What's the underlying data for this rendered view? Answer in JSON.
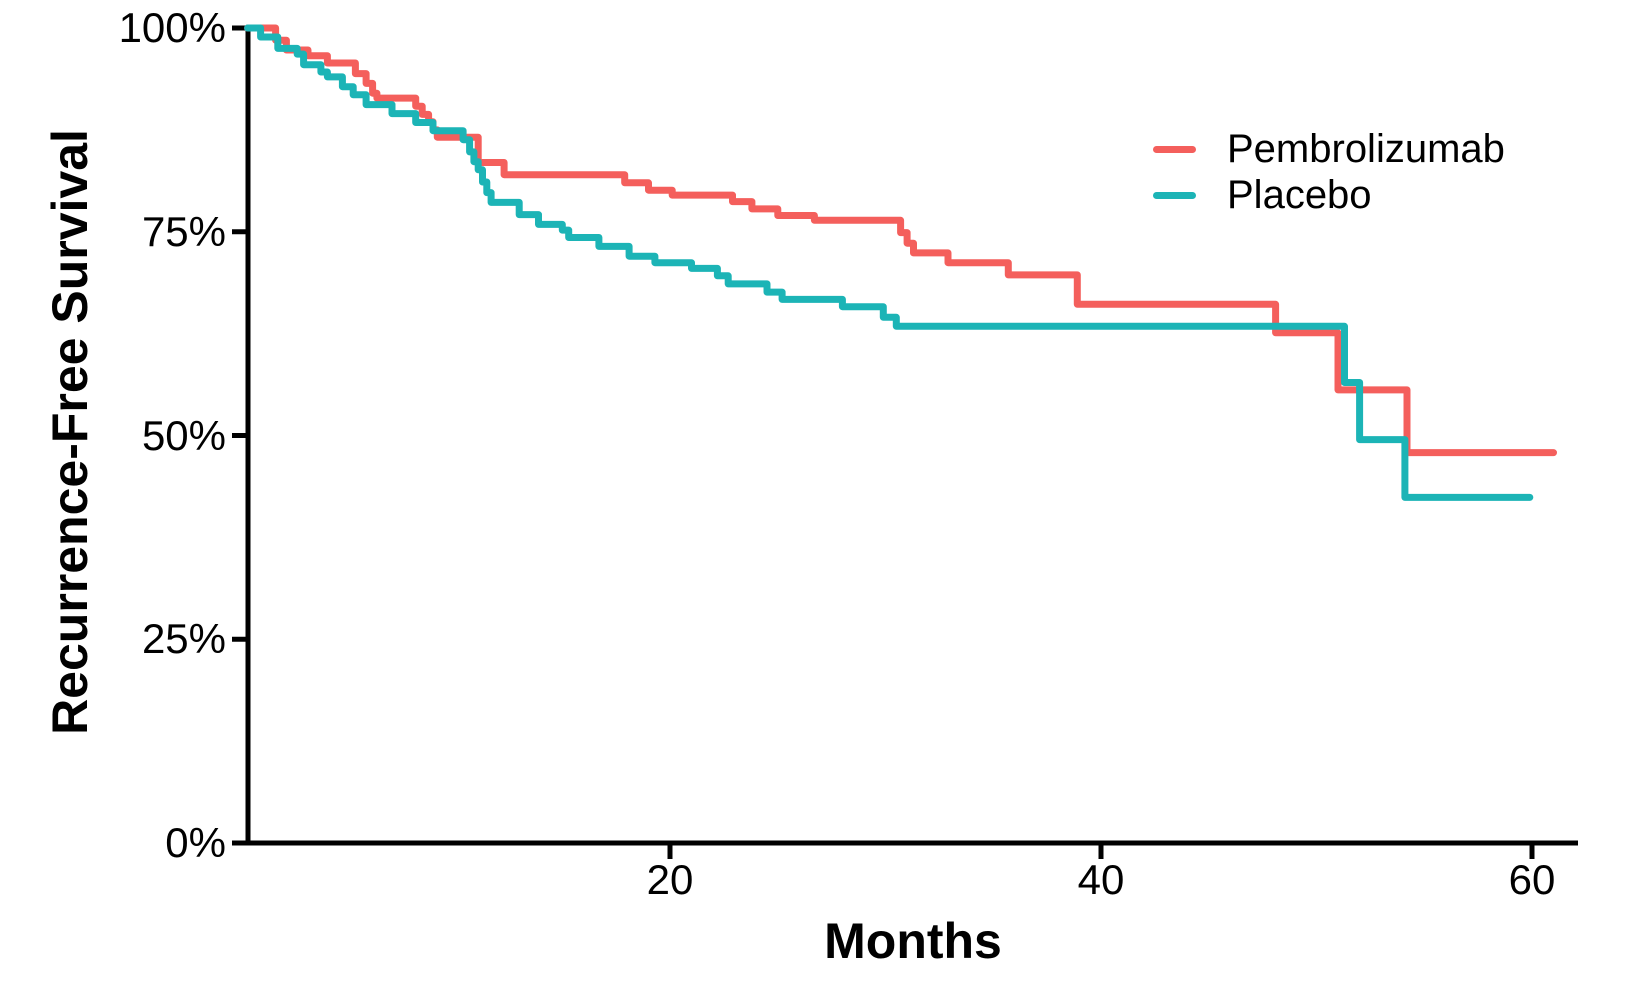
{
  "chart_data": {
    "type": "line",
    "subtype": "kaplan-meier-step",
    "title": "",
    "xlabel": "Months",
    "ylabel": "Recurrence-Free Survival",
    "xlim": [
      0,
      62
    ],
    "ylim": [
      0,
      100
    ],
    "grid": false,
    "legend_position": "top-right",
    "axis_color": "#000000",
    "xticks": [
      {
        "value": 20,
        "label": "20"
      },
      {
        "value": 40,
        "label": "40"
      },
      {
        "value": 60,
        "label": "60"
      }
    ],
    "yticks": [
      {
        "value": 0,
        "label": "0%"
      },
      {
        "value": 25,
        "label": "25%"
      },
      {
        "value": 50,
        "label": "50%"
      },
      {
        "value": 75,
        "label": "75%"
      },
      {
        "value": 100,
        "label": "100%"
      }
    ],
    "series": [
      {
        "name": "Pembrolizumab",
        "color": "#F45F5C",
        "end_month": 61.0,
        "steps": [
          [
            0.4,
            100
          ],
          [
            1.7,
            98.5
          ],
          [
            2.2,
            97.3
          ],
          [
            3.2,
            96.6
          ],
          [
            4.1,
            95.7
          ],
          [
            5.4,
            94.4
          ],
          [
            5.9,
            93.2
          ],
          [
            6.2,
            92.0
          ],
          [
            6.4,
            91.4
          ],
          [
            8.2,
            90.4
          ],
          [
            8.5,
            89.4
          ],
          [
            8.8,
            88.5
          ],
          [
            9.0,
            87.5
          ],
          [
            9.2,
            86.6
          ],
          [
            11.1,
            83.5
          ],
          [
            12.3,
            82.0
          ],
          [
            17.9,
            81.0
          ],
          [
            19.0,
            80.1
          ],
          [
            20.1,
            79.5
          ],
          [
            22.9,
            78.7
          ],
          [
            23.8,
            77.8
          ],
          [
            25.0,
            77.0
          ],
          [
            26.7,
            76.4
          ],
          [
            30.7,
            74.9
          ],
          [
            31.0,
            73.6
          ],
          [
            31.3,
            72.4
          ],
          [
            32.9,
            71.2
          ],
          [
            35.7,
            69.7
          ],
          [
            38.9,
            66.1
          ],
          [
            48.1,
            62.6
          ],
          [
            51.0,
            55.6
          ],
          [
            54.2,
            47.9
          ]
        ]
      },
      {
        "name": "Placebo",
        "color": "#1CB4B6",
        "end_month": 59.9,
        "steps": [
          [
            0.4,
            100
          ],
          [
            1.0,
            98.9
          ],
          [
            1.8,
            97.5
          ],
          [
            2.7,
            96.8
          ],
          [
            3.0,
            95.5
          ],
          [
            3.8,
            94.6
          ],
          [
            4.1,
            94.0
          ],
          [
            4.8,
            92.8
          ],
          [
            5.3,
            91.8
          ],
          [
            5.9,
            90.6
          ],
          [
            7.1,
            89.5
          ],
          [
            8.2,
            88.4
          ],
          [
            9.0,
            87.4
          ],
          [
            10.4,
            86.3
          ],
          [
            10.7,
            84.8
          ],
          [
            10.9,
            83.6
          ],
          [
            11.1,
            82.6
          ],
          [
            11.3,
            81.1
          ],
          [
            11.5,
            79.8
          ],
          [
            11.7,
            78.6
          ],
          [
            13.0,
            77.1
          ],
          [
            13.9,
            75.9
          ],
          [
            15.0,
            75.2
          ],
          [
            15.3,
            74.3
          ],
          [
            16.7,
            73.2
          ],
          [
            18.1,
            72.0
          ],
          [
            19.3,
            71.2
          ],
          [
            21.0,
            70.5
          ],
          [
            22.2,
            69.6
          ],
          [
            22.7,
            68.6
          ],
          [
            24.5,
            67.6
          ],
          [
            25.2,
            66.7
          ],
          [
            28.0,
            65.8
          ],
          [
            29.9,
            64.5
          ],
          [
            30.5,
            63.4
          ],
          [
            51.3,
            56.5
          ],
          [
            52.0,
            49.5
          ],
          [
            54.1,
            42.4
          ]
        ]
      }
    ]
  }
}
